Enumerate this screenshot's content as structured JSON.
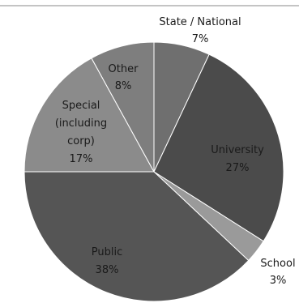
{
  "chart_data": {
    "type": "pie",
    "title": "",
    "categories": [
      "State / National",
      "University",
      "School",
      "Public",
      "Special (including corp)",
      "Other"
    ],
    "values": [
      7,
      27,
      3,
      38,
      17,
      8
    ],
    "value_labels": [
      "7%",
      "27%",
      "3%",
      "38%",
      "17%",
      "8%"
    ],
    "slice_colors": [
      "#6f6f6f",
      "#4b4b4b",
      "#9a9a9a",
      "#555555",
      "#8b8b8b",
      "#7e7e7e"
    ],
    "label_colors": [
      "#1a1a1a",
      "#1a1a1a",
      "#1a1a1a",
      "#1a1a1a",
      "#1a1a1a",
      "#1a1a1a"
    ],
    "legend": "none",
    "start_angle_deg": 0,
    "direction": "clockwise"
  },
  "labels": {
    "state_line1": "State / National",
    "state_line2": "7%",
    "university_line1": "University",
    "university_line2": "27%",
    "school_line1": "School",
    "school_line2": "3%",
    "public_line1": "Public",
    "public_line2": "38%",
    "special_line1": "Special",
    "special_line2": "(including",
    "special_line3": "corp)",
    "special_line4": "17%",
    "other_line1": "Other",
    "other_line2": "8%"
  }
}
